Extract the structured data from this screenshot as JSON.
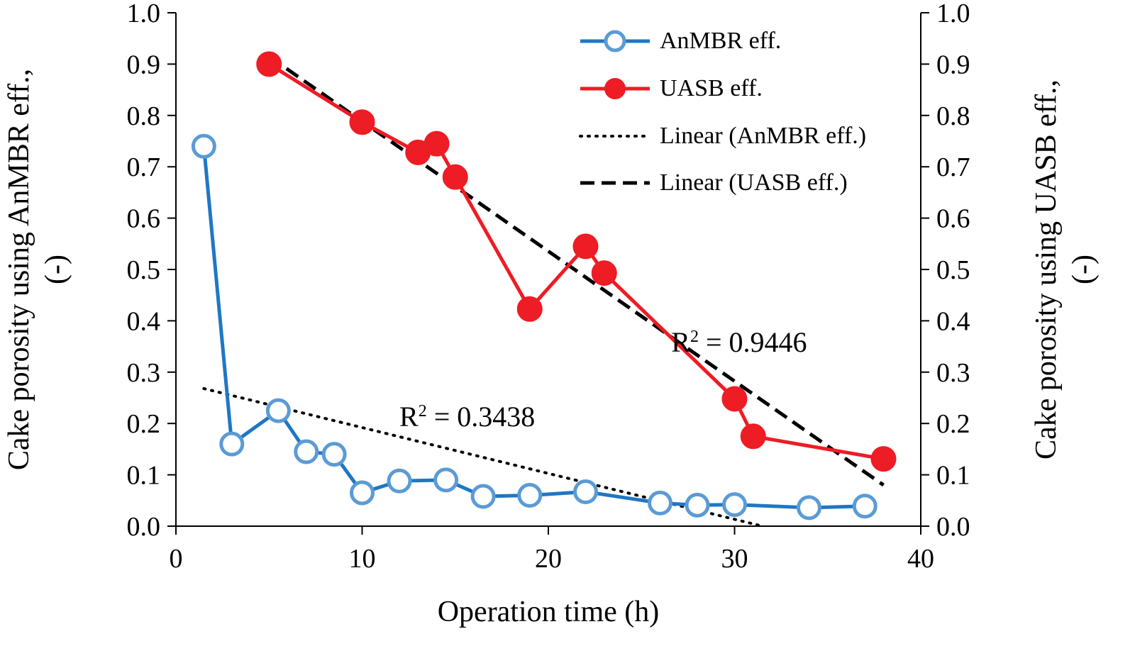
{
  "chart_data": {
    "type": "line",
    "title": "",
    "xlabel": "Operation time (h)",
    "ylabel_left": [
      "Cake porosity using AnMBR eff.,",
      "(-)"
    ],
    "ylabel_right": [
      "Cake porosity using UASB eff.,",
      "(-)"
    ],
    "xlim": [
      0,
      40
    ],
    "ylim": [
      0,
      1.0
    ],
    "x_ticks": [
      "0",
      "10",
      "20",
      "30",
      "40"
    ],
    "y_ticks": [
      "0.0",
      "0.1",
      "0.2",
      "0.3",
      "0.4",
      "0.5",
      "0.6",
      "0.7",
      "0.8",
      "0.9",
      "1.0"
    ],
    "grid": false,
    "legend_position": "top-right",
    "series": [
      {
        "name": "AnMBR eff.",
        "color": "#1f77c4",
        "marker": "open-circle",
        "x": [
          1.5,
          3.0,
          5.5,
          7.0,
          8.5,
          10.0,
          12.0,
          14.5,
          16.5,
          19.0,
          22.0,
          26.0,
          28.0,
          30.0,
          34.0,
          37.0
        ],
        "y": [
          0.74,
          0.16,
          0.225,
          0.145,
          0.14,
          0.065,
          0.088,
          0.09,
          0.058,
          0.06,
          0.067,
          0.045,
          0.041,
          0.042,
          0.036,
          0.039
        ]
      },
      {
        "name": "UASB eff.",
        "color": "#ee1c24",
        "marker": "filled-circle",
        "x": [
          5.0,
          10.0,
          13.0,
          14.0,
          15.0,
          19.0,
          22.0,
          23.0,
          30.0,
          31.0,
          38.0
        ],
        "y": [
          0.9,
          0.787,
          0.728,
          0.745,
          0.68,
          0.423,
          0.545,
          0.493,
          0.248,
          0.175,
          0.131
        ]
      }
    ],
    "trendlines": [
      {
        "name": "Linear (AnMBR eff.)",
        "style": "dotted",
        "color": "#000000",
        "x": [
          1.5,
          31.5
        ],
        "y": [
          0.268,
          0.0
        ]
      },
      {
        "name": "Linear (UASB eff.)",
        "style": "dashed",
        "color": "#000000",
        "x": [
          5.0,
          38.0
        ],
        "y": [
          0.915,
          0.08
        ]
      }
    ],
    "annotations": [
      {
        "base": "R",
        "sup": "2",
        "rest": " = 0.9446",
        "x": 26.6,
        "y": 0.34
      },
      {
        "base": "R",
        "sup": "2",
        "rest": " = 0.3438",
        "x": 12.0,
        "y": 0.195
      }
    ]
  }
}
